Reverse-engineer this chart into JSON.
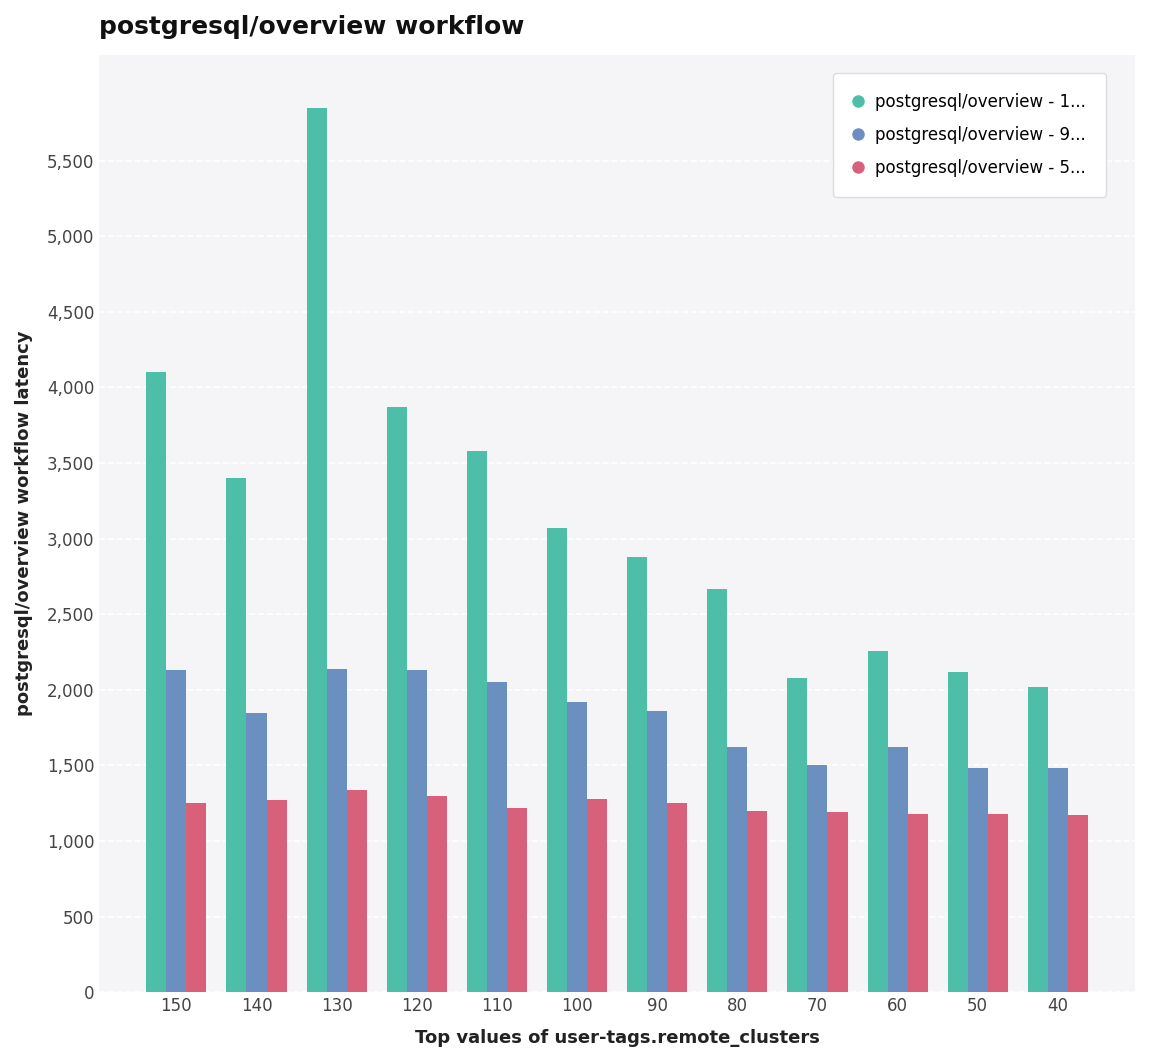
{
  "title": "postgresql/overview workflow",
  "xlabel": "Top values of user-tags.remote_clusters",
  "ylabel": "postgresql/overview workflow latency",
  "categories": [
    150,
    140,
    130,
    120,
    110,
    100,
    90,
    80,
    70,
    60,
    50,
    40
  ],
  "series": [
    {
      "name": "postgresql/overview - 1...",
      "color": "#4dbfa8",
      "values": [
        4100,
        3400,
        5850,
        3870,
        3580,
        3070,
        2880,
        2670,
        2080,
        2260,
        2120,
        2020
      ]
    },
    {
      "name": "postgresql/overview - 9...",
      "color": "#6b8fbf",
      "values": [
        2130,
        1850,
        2140,
        2130,
        2050,
        1920,
        1860,
        1620,
        1500,
        1620,
        1480,
        1480
      ]
    },
    {
      "name": "postgresql/overview - 5...",
      "color": "#d9607a",
      "values": [
        1250,
        1270,
        1340,
        1300,
        1220,
        1280,
        1250,
        1200,
        1190,
        1180,
        1180,
        1175
      ]
    }
  ],
  "ylim": [
    0,
    6200
  ],
  "yticks": [
    0,
    500,
    1000,
    1500,
    2000,
    2500,
    3000,
    3500,
    4000,
    4500,
    5000,
    5500
  ],
  "background_color": "#ffffff",
  "plot_bg_color": "#f5f5f8",
  "grid_color": "#ffffff",
  "title_fontsize": 18,
  "axis_label_fontsize": 13,
  "tick_fontsize": 12,
  "legend_fontsize": 12
}
